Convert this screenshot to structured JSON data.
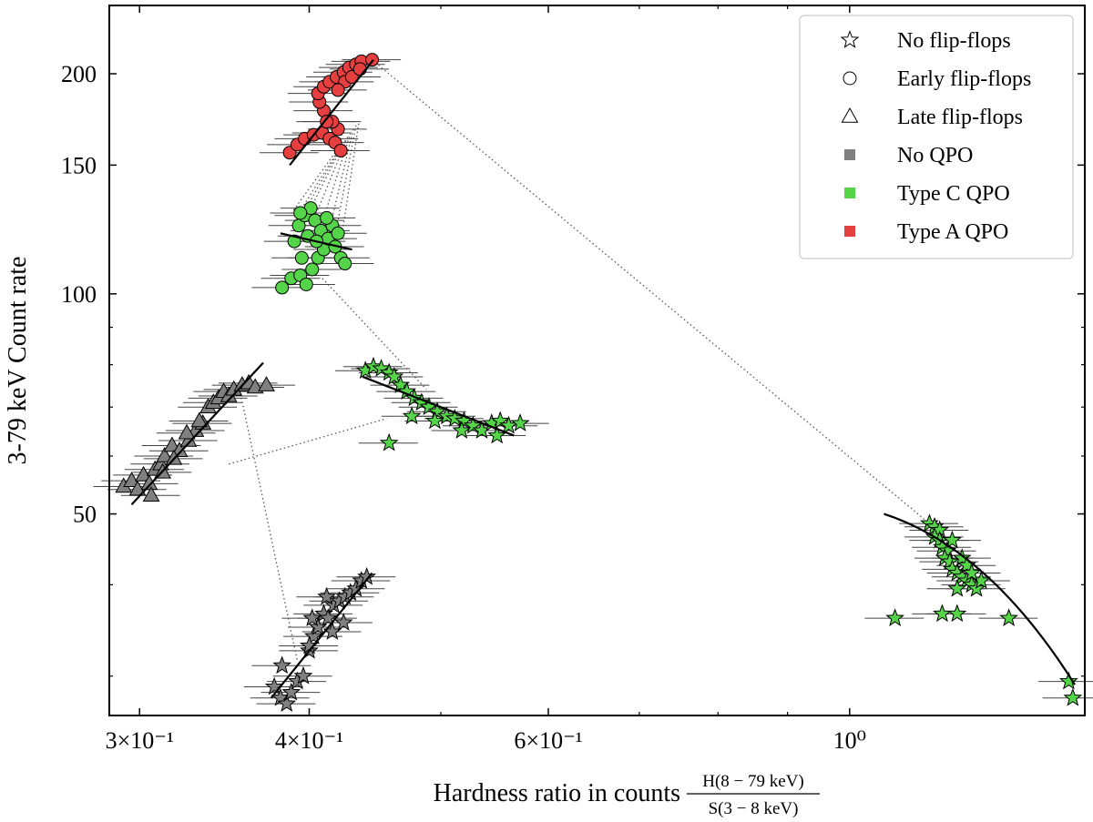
{
  "chart_data": {
    "type": "scatter",
    "title": "",
    "xlabel": "Hardness ratio in counts",
    "xlabel_fraction": {
      "numerator": "H(8 − 79 keV)",
      "denominator": "S(3 − 8 keV)"
    },
    "ylabel": "3-79 keV Count rate",
    "x_scale": "log",
    "y_scale": "log",
    "xlim": [
      0.285,
      1.49
    ],
    "ylim": [
      26.5,
      248
    ],
    "x_major_ticks": [
      {
        "value": 0.3,
        "label": "3×10⁻¹"
      },
      {
        "value": 0.4,
        "label": "4×10⁻¹"
      },
      {
        "value": 0.6,
        "label": "6×10⁻¹"
      },
      {
        "value": 1.0,
        "label": "10⁰"
      }
    ],
    "x_minor_ticks": [
      0.5,
      0.7,
      0.8,
      0.9
    ],
    "y_major_ticks": [
      {
        "value": 50,
        "label": "50"
      },
      {
        "value": 100,
        "label": "100"
      },
      {
        "value": 150,
        "label": "150"
      },
      {
        "value": 200,
        "label": "200"
      }
    ],
    "y_minor_ticks": [
      30,
      40,
      60,
      70,
      80,
      90
    ],
    "legend": {
      "placement": "top-right",
      "entries": [
        {
          "label": "No flip-flops",
          "marker": "star",
          "color": "#ffffff"
        },
        {
          "label": "Early flip-flops",
          "marker": "circle",
          "color": "#ffffff"
        },
        {
          "label": "Late flip-flops",
          "marker": "triangle",
          "color": "#ffffff"
        },
        {
          "label": "No QPO",
          "marker": "square",
          "color": "#808080"
        },
        {
          "label": "Type C QPO",
          "marker": "square",
          "color": "#55d44a"
        },
        {
          "label": "Type A QPO",
          "marker": "square",
          "color": "#e63f3f"
        }
      ]
    },
    "colors": {
      "no_qpo": "#808080",
      "type_c": "#55d44a",
      "type_a": "#e63f3f",
      "fit_line": "#000000",
      "connector": "#555555"
    },
    "series": [
      {
        "name": "Late flip-flops, No QPO",
        "marker": "triangle",
        "qpo": "no_qpo",
        "points": [
          [
            0.292,
            54.5
          ],
          [
            0.296,
            55.5
          ],
          [
            0.299,
            54
          ],
          [
            0.302,
            56.5
          ],
          [
            0.305,
            55
          ],
          [
            0.308,
            57.5
          ],
          [
            0.311,
            58.5
          ],
          [
            0.313,
            60
          ],
          [
            0.317,
            62
          ],
          [
            0.321,
            61
          ],
          [
            0.326,
            63
          ],
          [
            0.33,
            65
          ],
          [
            0.334,
            66.5
          ],
          [
            0.337,
            70
          ],
          [
            0.34,
            71
          ],
          [
            0.343,
            72
          ],
          [
            0.346,
            73.5
          ],
          [
            0.349,
            72.5
          ],
          [
            0.352,
            74
          ],
          [
            0.357,
            75
          ],
          [
            0.361,
            75.5
          ],
          [
            0.365,
            74.5
          ],
          [
            0.372,
            75
          ],
          [
            0.306,
            53
          ],
          [
            0.312,
            57
          ],
          [
            0.318,
            59.5
          ],
          [
            0.325,
            64.5
          ],
          [
            0.332,
            67
          ]
        ],
        "fit": [
          [
            0.296,
            51.5
          ],
          [
            0.37,
            80.5
          ]
        ]
      },
      {
        "name": "Early flip-flops, Type A QPO",
        "marker": "circle",
        "qpo": "type_a",
        "points": [
          [
            0.387,
            156
          ],
          [
            0.392,
            160
          ],
          [
            0.397,
            163
          ],
          [
            0.403,
            165
          ],
          [
            0.409,
            166
          ],
          [
            0.414,
            163
          ],
          [
            0.418,
            161
          ],
          [
            0.42,
            168
          ],
          [
            0.416,
            172
          ],
          [
            0.41,
            178
          ],
          [
            0.407,
            183
          ],
          [
            0.406,
            188
          ],
          [
            0.41,
            192
          ],
          [
            0.414,
            195
          ],
          [
            0.419,
            198
          ],
          [
            0.424,
            201
          ],
          [
            0.428,
            204
          ],
          [
            0.433,
            206
          ],
          [
            0.437,
            208
          ],
          [
            0.445,
            209
          ],
          [
            0.425,
            195
          ],
          [
            0.42,
            190
          ],
          [
            0.43,
            198
          ],
          [
            0.436,
            203
          ],
          [
            0.412,
            172
          ],
          [
            0.422,
            157
          ]
        ],
        "fit": [
          [
            0.387,
            150
          ],
          [
            0.446,
            209
          ]
        ]
      },
      {
        "name": "Early flip-flops, Type C QPO",
        "marker": "circle",
        "qpo": "type_c",
        "points": [
          [
            0.382,
            102
          ],
          [
            0.388,
            105
          ],
          [
            0.394,
            106
          ],
          [
            0.398,
            103
          ],
          [
            0.402,
            108
          ],
          [
            0.406,
            112
          ],
          [
            0.41,
            115
          ],
          [
            0.395,
            112
          ],
          [
            0.39,
            118
          ],
          [
            0.393,
            124
          ],
          [
            0.397,
            128
          ],
          [
            0.401,
            131
          ],
          [
            0.404,
            126
          ],
          [
            0.408,
            122
          ],
          [
            0.413,
            119
          ],
          [
            0.418,
            116
          ],
          [
            0.422,
            112
          ],
          [
            0.425,
            110
          ],
          [
            0.416,
            124
          ],
          [
            0.412,
            127
          ],
          [
            0.399,
            120
          ],
          [
            0.405,
            118
          ],
          [
            0.394,
            129
          ],
          [
            0.42,
            121
          ]
        ],
        "fit": [
          [
            0.381,
            121
          ],
          [
            0.43,
            115
          ]
        ]
      },
      {
        "name": "No flip-flops, Type C QPO (upper)",
        "marker": "star",
        "qpo": "type_c",
        "points": [
          [
            0.44,
            78.5
          ],
          [
            0.446,
            79.5
          ],
          [
            0.452,
            79
          ],
          [
            0.458,
            78
          ],
          [
            0.462,
            77
          ],
          [
            0.467,
            75
          ],
          [
            0.472,
            73.5
          ],
          [
            0.478,
            72
          ],
          [
            0.484,
            71
          ],
          [
            0.49,
            70
          ],
          [
            0.497,
            69
          ],
          [
            0.505,
            68
          ],
          [
            0.512,
            67.5
          ],
          [
            0.52,
            67
          ],
          [
            0.528,
            66
          ],
          [
            0.536,
            65
          ],
          [
            0.545,
            66.5
          ],
          [
            0.553,
            67
          ],
          [
            0.561,
            66
          ],
          [
            0.572,
            66.5
          ],
          [
            0.458,
            62.5
          ],
          [
            0.476,
            68
          ],
          [
            0.495,
            67
          ],
          [
            0.518,
            65
          ],
          [
            0.55,
            64
          ]
        ],
        "fit": [
          [
            0.438,
            77
          ],
          [
            0.566,
            64
          ]
        ]
      },
      {
        "name": "No flip-flops, No QPO",
        "marker": "star",
        "qpo": "no_qpo",
        "points": [
          [
            0.377,
            29
          ],
          [
            0.381,
            28
          ],
          [
            0.385,
            27.5
          ],
          [
            0.388,
            28.5
          ],
          [
            0.392,
            29.5
          ],
          [
            0.396,
            30
          ],
          [
            0.4,
            32.5
          ],
          [
            0.403,
            34
          ],
          [
            0.406,
            35
          ],
          [
            0.41,
            36.5
          ],
          [
            0.413,
            36
          ],
          [
            0.417,
            37.5
          ],
          [
            0.421,
            38
          ],
          [
            0.425,
            38.5
          ],
          [
            0.429,
            39
          ],
          [
            0.433,
            39.5
          ],
          [
            0.437,
            40.5
          ],
          [
            0.441,
            41
          ],
          [
            0.382,
            31
          ],
          [
            0.402,
            36
          ],
          [
            0.416,
            34.5
          ],
          [
            0.424,
            35.5
          ],
          [
            0.412,
            38.5
          ],
          [
            0.4,
            33
          ]
        ],
        "fit": [
          [
            0.375,
            28
          ],
          [
            0.445,
            41.5
          ]
        ]
      },
      {
        "name": "No flip-flops, Type C QPO (hard)",
        "marker": "star",
        "qpo": "type_c",
        "points": [
          [
            1.145,
            48.5
          ],
          [
            1.155,
            48
          ],
          [
            1.165,
            47.5
          ],
          [
            1.155,
            46.5
          ],
          [
            1.165,
            46
          ],
          [
            1.17,
            45
          ],
          [
            1.18,
            44.5
          ],
          [
            1.175,
            43.5
          ],
          [
            1.185,
            43
          ],
          [
            1.19,
            42
          ],
          [
            1.2,
            41.5
          ],
          [
            1.21,
            41
          ],
          [
            1.22,
            40.5
          ],
          [
            1.23,
            40
          ],
          [
            1.2,
            39.5
          ],
          [
            1.21,
            43.5
          ],
          [
            1.19,
            46
          ],
          [
            1.22,
            42.5
          ],
          [
            1.24,
            39.5
          ],
          [
            1.25,
            40.5
          ],
          [
            1.23,
            41.5
          ],
          [
            1.08,
            36
          ],
          [
            1.17,
            36.5
          ],
          [
            1.2,
            36.5
          ],
          [
            1.31,
            36
          ],
          [
            1.45,
            29.5
          ],
          [
            1.46,
            28
          ]
        ],
        "fit": [
          [
            1.06,
            50
          ],
          [
            1.465,
            29.2
          ]
        ]
      }
    ],
    "connectors": [
      [
        [
          0.445,
          209
        ],
        [
          1.145,
          48.5
        ]
      ],
      [
        [
          0.349,
          58.5
        ],
        [
          0.456,
          67.5
        ]
      ],
      [
        [
          0.356,
          73
        ],
        [
          0.392,
          31.5
        ]
      ],
      [
        [
          0.409,
          105
        ],
        [
          0.488,
          74
        ]
      ],
      [
        [
          0.418,
          156
        ],
        [
          0.387,
          128
        ]
      ],
      [
        [
          0.421,
          158
        ],
        [
          0.393,
          129
        ]
      ],
      [
        [
          0.423,
          160
        ],
        [
          0.397,
          130
        ]
      ],
      [
        [
          0.425,
          162
        ],
        [
          0.401,
          131
        ]
      ],
      [
        [
          0.427,
          164
        ],
        [
          0.405,
          129
        ]
      ],
      [
        [
          0.429,
          166
        ],
        [
          0.41,
          127
        ]
      ],
      [
        [
          0.431,
          168
        ],
        [
          0.415,
          125
        ]
      ],
      [
        [
          0.433,
          170
        ],
        [
          0.419,
          123
        ]
      ],
      [
        [
          0.435,
          171
        ],
        [
          0.423,
          121
        ]
      ]
    ]
  }
}
